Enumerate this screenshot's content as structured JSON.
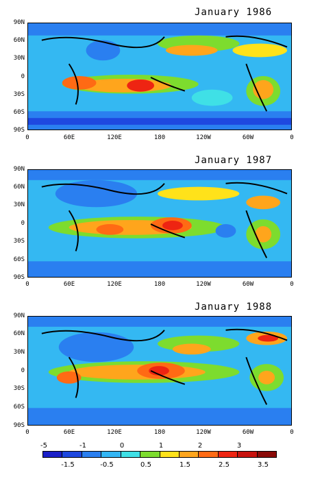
{
  "titles": [
    "January 1986",
    "January 1987",
    "January 1988"
  ],
  "lat_labels": [
    "90N",
    "60N",
    "30N",
    "0",
    "30S",
    "60S",
    "90S"
  ],
  "lon_labels": [
    "0",
    "60E",
    "120E",
    "180",
    "120W",
    "60W",
    "0"
  ],
  "colorbar": {
    "top_labels": [
      "-5",
      "-1",
      "0",
      "1",
      "2",
      "3"
    ],
    "bottom_labels": [
      "-1.5",
      "-0.5",
      "0.5",
      "1.5",
      "2.5",
      "3.5"
    ],
    "colors": [
      "#1a1fc8",
      "#1e48e0",
      "#2a7ff0",
      "#33b6f5",
      "#3fe0e6",
      "#7ddc2e",
      "#ffe21a",
      "#ffa51c",
      "#ff6a14",
      "#ee2412",
      "#c8120e",
      "#8a0a08"
    ]
  }
}
